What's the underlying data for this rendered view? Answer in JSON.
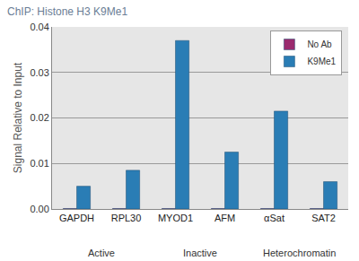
{
  "chart_data": {
    "type": "bar",
    "title": "ChIP: Histone H3 K9Me1",
    "y_label": "Signal Relative to Input",
    "categories": [
      "GAPDH",
      "RPL30",
      "MYOD1",
      "AFM",
      "αSat",
      "SAT2"
    ],
    "groups": [
      {
        "label": "Active",
        "categories": [
          "GAPDH",
          "RPL30"
        ]
      },
      {
        "label": "Inactive",
        "categories": [
          "MYOD1",
          "AFM"
        ]
      },
      {
        "label": "Heterochromatin",
        "categories": [
          "αSat",
          "SAT2"
        ]
      }
    ],
    "series": [
      {
        "name": "No Ab",
        "color": "#9b2a6e",
        "values": [
          0.0001,
          0.0001,
          0.0001,
          0.0001,
          0.0001,
          0.0001
        ]
      },
      {
        "name": "K9Me1",
        "color": "#2a7db5",
        "values": [
          0.005,
          0.0085,
          0.037,
          0.0125,
          0.0215,
          0.006
        ]
      }
    ],
    "ylim": [
      0,
      0.04
    ],
    "yticks": [
      {
        "value": 0,
        "label": "0.00"
      },
      {
        "value": 0.01,
        "label": "0.01"
      },
      {
        "value": 0.02,
        "label": "0.02"
      },
      {
        "value": 0.03,
        "label": "0.03"
      },
      {
        "value": 0.04,
        "label": "0.04"
      }
    ],
    "grid": true,
    "legend": "top right"
  }
}
